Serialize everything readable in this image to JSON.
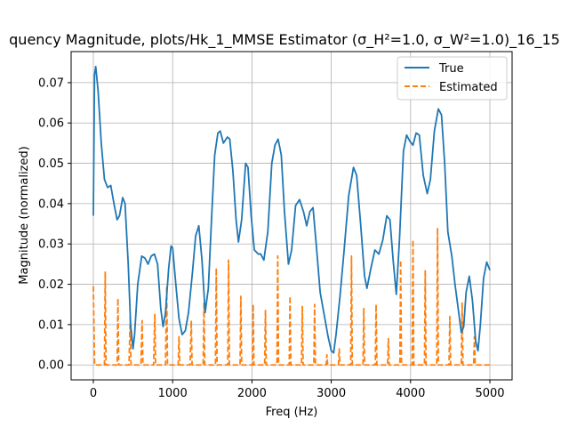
{
  "chart_data": {
    "type": "line",
    "title": "quency Magnitude, plots/Hk_1_MMSE Estimator (σ_H²=1.0, σ_W²=1.0)_16_15",
    "xlabel": "Freq (Hz)",
    "ylabel": "Magnitude (normalized)",
    "xlim": [
      -280,
      5280
    ],
    "ylim": [
      -0.0037,
      0.0777
    ],
    "xticks": [
      0,
      1000,
      2000,
      3000,
      4000,
      5000
    ],
    "xtick_labels": [
      "0",
      "1000",
      "2000",
      "3000",
      "4000",
      "5000"
    ],
    "yticks": [
      0.0,
      0.01,
      0.02,
      0.03,
      0.04,
      0.05,
      0.06,
      0.07
    ],
    "ytick_labels": [
      "0.00",
      "0.01",
      "0.02",
      "0.03",
      "0.04",
      "0.05",
      "0.06",
      "0.07"
    ],
    "grid": true,
    "legend_position": "top-right",
    "series": [
      {
        "name": "True",
        "color": "#1f77b4",
        "style": "solid",
        "points": [
          [
            0,
            0.037
          ],
          [
            15,
            0.072
          ],
          [
            30,
            0.074
          ],
          [
            60,
            0.068
          ],
          [
            100,
            0.055
          ],
          [
            140,
            0.046
          ],
          [
            180,
            0.044
          ],
          [
            220,
            0.0445
          ],
          [
            260,
            0.04
          ],
          [
            300,
            0.036
          ],
          [
            330,
            0.037
          ],
          [
            370,
            0.0415
          ],
          [
            400,
            0.04
          ],
          [
            440,
            0.025
          ],
          [
            470,
            0.01
          ],
          [
            500,
            0.004
          ],
          [
            520,
            0.0075
          ],
          [
            560,
            0.02
          ],
          [
            610,
            0.027
          ],
          [
            650,
            0.0265
          ],
          [
            690,
            0.025
          ],
          [
            730,
            0.027
          ],
          [
            770,
            0.0275
          ],
          [
            810,
            0.025
          ],
          [
            850,
            0.014
          ],
          [
            880,
            0.0095
          ],
          [
            910,
            0.013
          ],
          [
            950,
            0.024
          ],
          [
            980,
            0.0295
          ],
          [
            1000,
            0.029
          ],
          [
            1040,
            0.02
          ],
          [
            1080,
            0.0115
          ],
          [
            1120,
            0.0075
          ],
          [
            1160,
            0.0085
          ],
          [
            1200,
            0.013
          ],
          [
            1250,
            0.023
          ],
          [
            1290,
            0.032
          ],
          [
            1330,
            0.0345
          ],
          [
            1370,
            0.026
          ],
          [
            1410,
            0.013
          ],
          [
            1450,
            0.019
          ],
          [
            1490,
            0.036
          ],
          [
            1530,
            0.052
          ],
          [
            1570,
            0.0575
          ],
          [
            1600,
            0.058
          ],
          [
            1640,
            0.055
          ],
          [
            1690,
            0.0565
          ],
          [
            1720,
            0.056
          ],
          [
            1760,
            0.048
          ],
          [
            1800,
            0.036
          ],
          [
            1830,
            0.0305
          ],
          [
            1870,
            0.036
          ],
          [
            1920,
            0.05
          ],
          [
            1950,
            0.049
          ],
          [
            1990,
            0.037
          ],
          [
            2030,
            0.0285
          ],
          [
            2080,
            0.0275
          ],
          [
            2110,
            0.0275
          ],
          [
            2150,
            0.026
          ],
          [
            2200,
            0.033
          ],
          [
            2250,
            0.05
          ],
          [
            2290,
            0.0545
          ],
          [
            2330,
            0.056
          ],
          [
            2370,
            0.052
          ],
          [
            2410,
            0.038
          ],
          [
            2460,
            0.025
          ],
          [
            2500,
            0.0285
          ],
          [
            2550,
            0.0395
          ],
          [
            2600,
            0.041
          ],
          [
            2650,
            0.038
          ],
          [
            2690,
            0.0345
          ],
          [
            2730,
            0.038
          ],
          [
            2770,
            0.039
          ],
          [
            2810,
            0.03
          ],
          [
            2860,
            0.018
          ],
          [
            2910,
            0.0125
          ],
          [
            2960,
            0.007
          ],
          [
            3000,
            0.0035
          ],
          [
            3030,
            0.003
          ],
          [
            3060,
            0.0075
          ],
          [
            3110,
            0.017
          ],
          [
            3160,
            0.028
          ],
          [
            3220,
            0.042
          ],
          [
            3280,
            0.049
          ],
          [
            3320,
            0.047
          ],
          [
            3370,
            0.035
          ],
          [
            3420,
            0.022
          ],
          [
            3450,
            0.019
          ],
          [
            3500,
            0.024
          ],
          [
            3550,
            0.0285
          ],
          [
            3600,
            0.0275
          ],
          [
            3650,
            0.031
          ],
          [
            3700,
            0.037
          ],
          [
            3740,
            0.036
          ],
          [
            3780,
            0.026
          ],
          [
            3820,
            0.0175
          ],
          [
            3860,
            0.031
          ],
          [
            3910,
            0.053
          ],
          [
            3950,
            0.057
          ],
          [
            3990,
            0.0555
          ],
          [
            4030,
            0.0545
          ],
          [
            4070,
            0.0575
          ],
          [
            4110,
            0.057
          ],
          [
            4160,
            0.047
          ],
          [
            4210,
            0.0425
          ],
          [
            4250,
            0.046
          ],
          [
            4300,
            0.058
          ],
          [
            4350,
            0.0635
          ],
          [
            4390,
            0.062
          ],
          [
            4430,
            0.05
          ],
          [
            4470,
            0.033
          ],
          [
            4520,
            0.027
          ],
          [
            4560,
            0.02
          ],
          [
            4600,
            0.014
          ],
          [
            4640,
            0.008
          ],
          [
            4670,
            0.0095
          ],
          [
            4700,
            0.018
          ],
          [
            4740,
            0.022
          ],
          [
            4780,
            0.016
          ],
          [
            4820,
            0.006
          ],
          [
            4850,
            0.0035
          ],
          [
            4880,
            0.01
          ],
          [
            4920,
            0.0215
          ],
          [
            4960,
            0.0255
          ],
          [
            5000,
            0.0235
          ]
        ]
      },
      {
        "name": "Estimated",
        "color": "#ff7f0e",
        "style": "dashed",
        "points": [
          [
            0,
            0.0195
          ],
          [
            16,
            0.0
          ],
          [
            140,
            0.0
          ],
          [
            150,
            0.023
          ],
          [
            160,
            0.0
          ],
          [
            300,
            0.0
          ],
          [
            310,
            0.0165
          ],
          [
            320,
            0.0
          ],
          [
            450,
            0.0
          ],
          [
            465,
            0.012
          ],
          [
            475,
            0.0
          ],
          [
            600,
            0.0
          ],
          [
            615,
            0.011
          ],
          [
            625,
            0.0
          ],
          [
            760,
            0.0
          ],
          [
            775,
            0.0125
          ],
          [
            785,
            0.0
          ],
          [
            910,
            0.0
          ],
          [
            925,
            0.0195
          ],
          [
            935,
            0.0
          ],
          [
            1070,
            0.0
          ],
          [
            1080,
            0.007
          ],
          [
            1090,
            0.0
          ],
          [
            1220,
            0.0
          ],
          [
            1235,
            0.011
          ],
          [
            1245,
            0.0
          ],
          [
            1385,
            0.0
          ],
          [
            1395,
            0.0155
          ],
          [
            1405,
            0.0
          ],
          [
            1540,
            0.0
          ],
          [
            1550,
            0.024
          ],
          [
            1560,
            0.0
          ],
          [
            1695,
            0.0
          ],
          [
            1705,
            0.026
          ],
          [
            1715,
            0.0
          ],
          [
            1850,
            0.0
          ],
          [
            1860,
            0.017
          ],
          [
            1870,
            0.0
          ],
          [
            2005,
            0.0
          ],
          [
            2015,
            0.015
          ],
          [
            2025,
            0.0
          ],
          [
            2160,
            0.0
          ],
          [
            2170,
            0.0135
          ],
          [
            2180,
            0.0
          ],
          [
            2315,
            0.0
          ],
          [
            2325,
            0.027
          ],
          [
            2335,
            0.0
          ],
          [
            2470,
            0.0
          ],
          [
            2480,
            0.017
          ],
          [
            2490,
            0.0
          ],
          [
            2625,
            0.0
          ],
          [
            2635,
            0.0145
          ],
          [
            2645,
            0.0
          ],
          [
            2780,
            0.0
          ],
          [
            2790,
            0.015
          ],
          [
            2800,
            0.0
          ],
          [
            2935,
            0.0
          ],
          [
            2945,
            0.0025
          ],
          [
            2955,
            0.0
          ],
          [
            3090,
            0.0
          ],
          [
            3100,
            0.004
          ],
          [
            3110,
            0.0
          ],
          [
            3245,
            0.0
          ],
          [
            3255,
            0.027
          ],
          [
            3265,
            0.0
          ],
          [
            3400,
            0.0
          ],
          [
            3410,
            0.014
          ],
          [
            3420,
            0.0
          ],
          [
            3555,
            0.0
          ],
          [
            3565,
            0.015
          ],
          [
            3575,
            0.0
          ],
          [
            3710,
            0.0
          ],
          [
            3720,
            0.0065
          ],
          [
            3730,
            0.0
          ],
          [
            3865,
            0.0
          ],
          [
            3875,
            0.026
          ],
          [
            3885,
            0.0
          ],
          [
            4020,
            0.0
          ],
          [
            4030,
            0.031
          ],
          [
            4040,
            0.0
          ],
          [
            4175,
            0.0
          ],
          [
            4185,
            0.0235
          ],
          [
            4195,
            0.0
          ],
          [
            4330,
            0.0
          ],
          [
            4340,
            0.034
          ],
          [
            4350,
            0.0
          ],
          [
            4485,
            0.0
          ],
          [
            4495,
            0.012
          ],
          [
            4505,
            0.0
          ],
          [
            4640,
            0.0
          ],
          [
            4650,
            0.0155
          ],
          [
            4660,
            0.0
          ],
          [
            4795,
            0.0
          ],
          [
            4805,
            0.007
          ],
          [
            4815,
            0.0
          ],
          [
            5000,
            0.0
          ]
        ]
      }
    ]
  }
}
